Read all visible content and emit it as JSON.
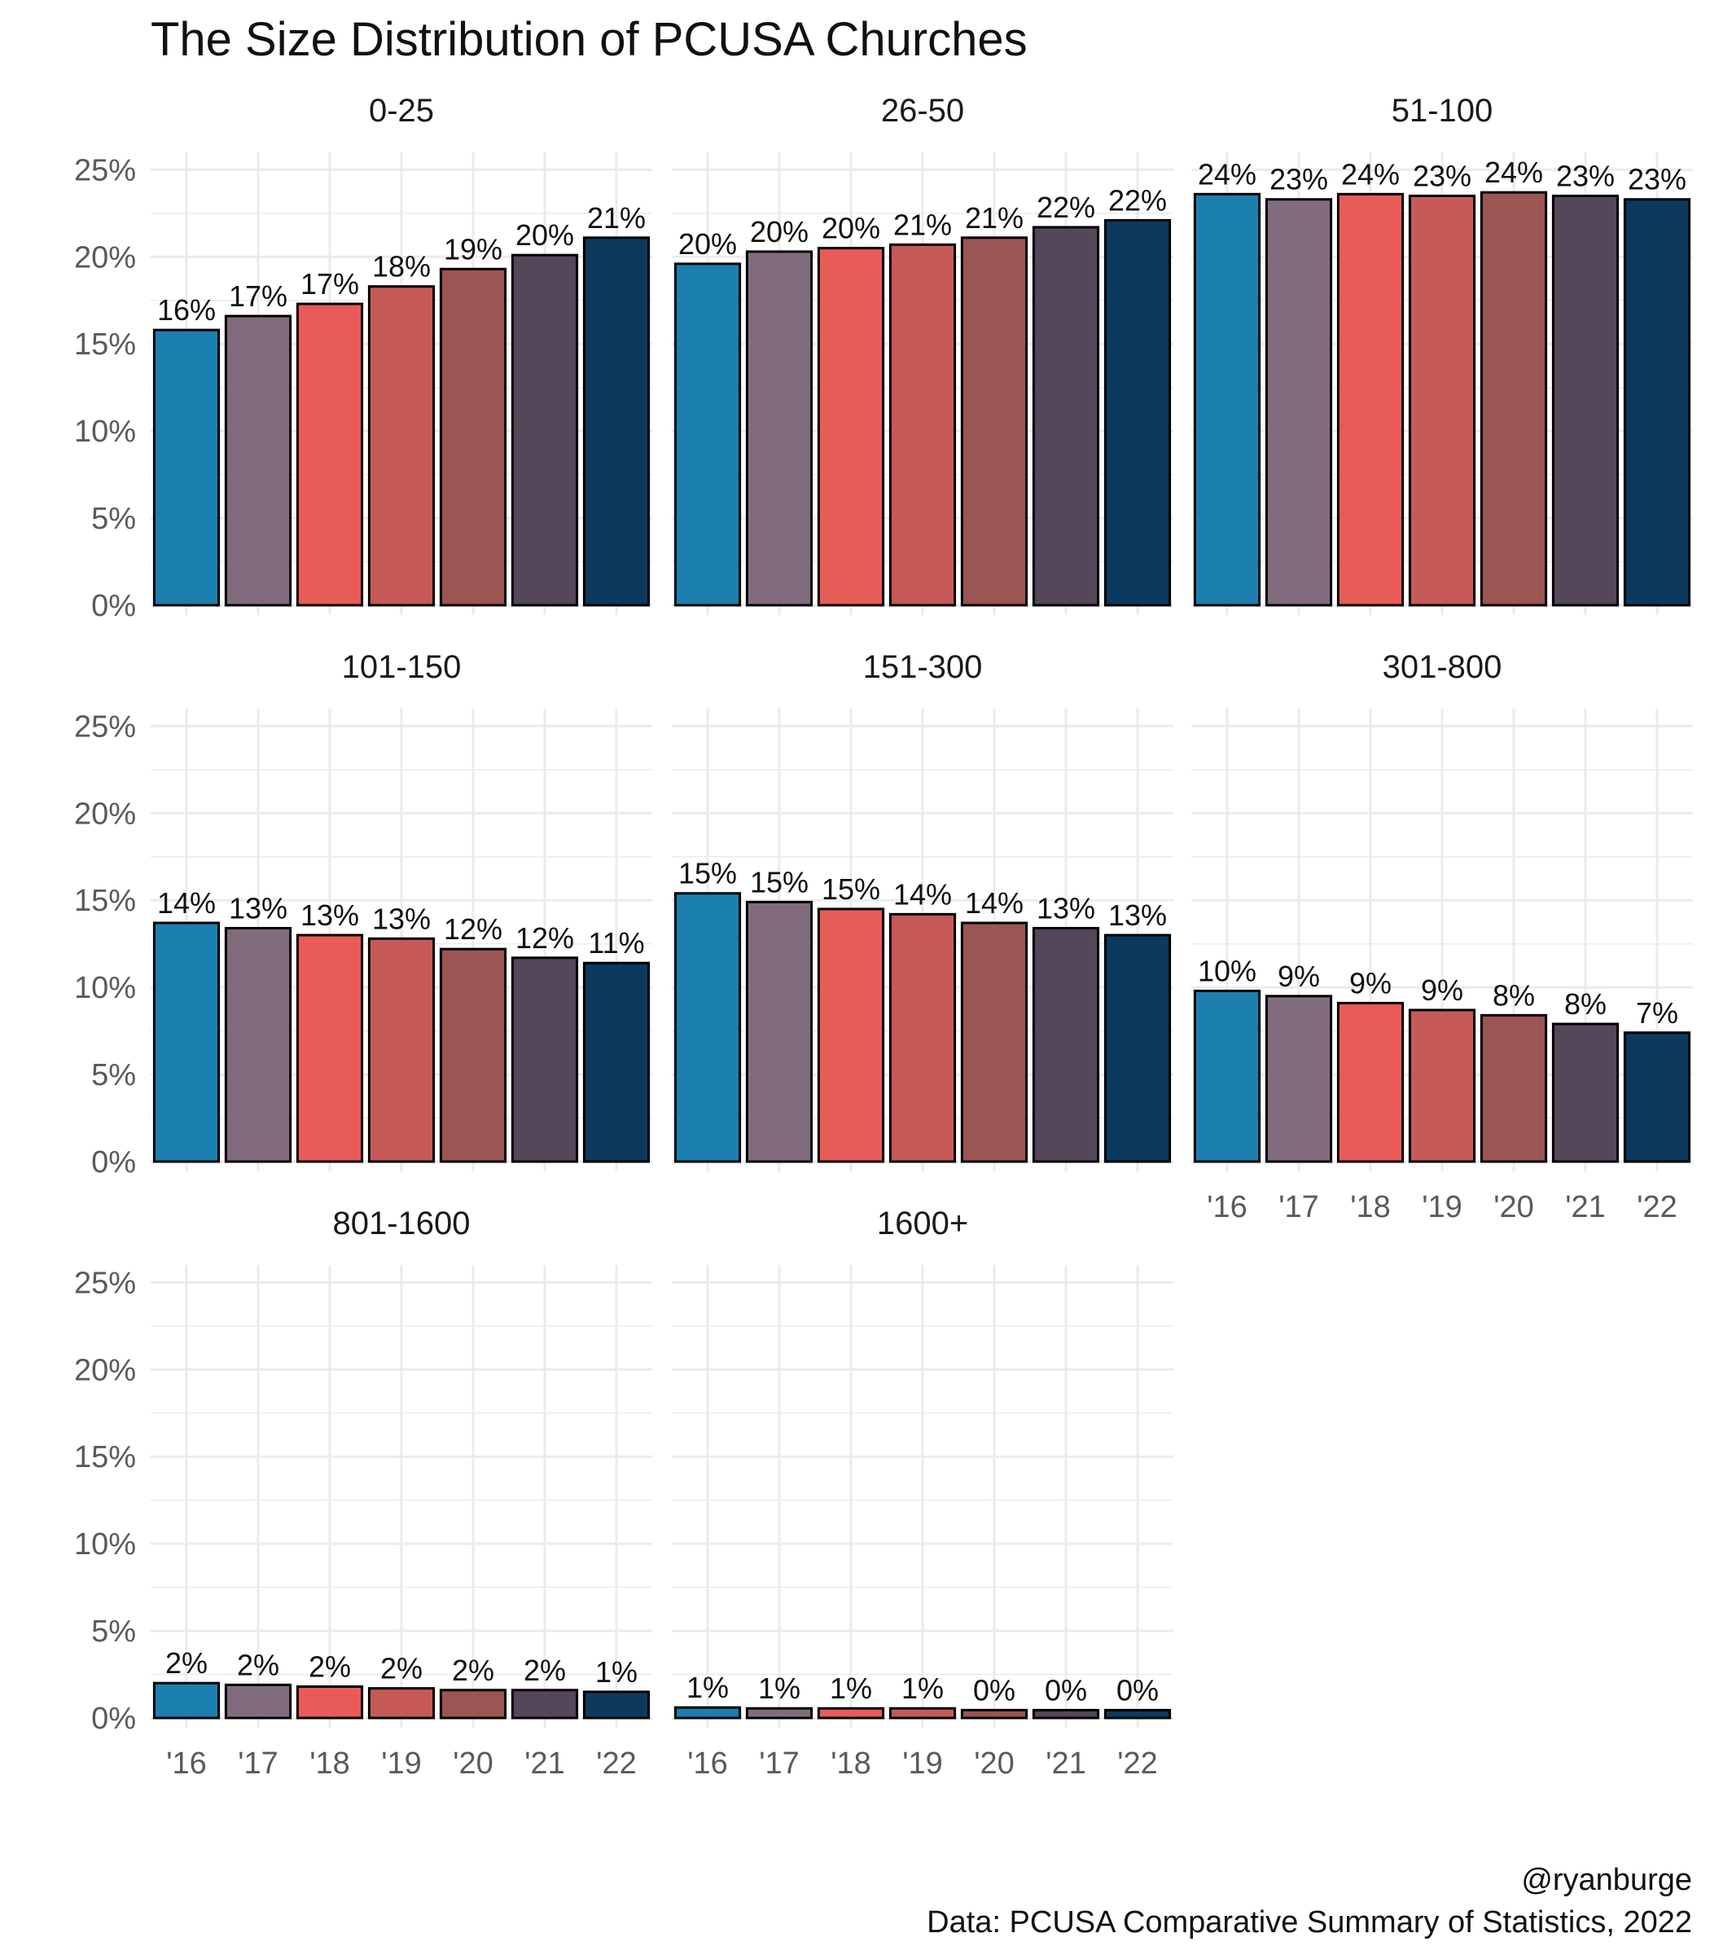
{
  "chart_data": {
    "type": "bar",
    "title": "The Size Distribution of PCUSA Churches",
    "xlabel": "",
    "ylabel": "",
    "categories": [
      "'16",
      "'17",
      "'18",
      "'19",
      "'20",
      "'21",
      "'22"
    ],
    "y_ticks": [
      "0%",
      "5%",
      "10%",
      "15%",
      "20%",
      "25%"
    ],
    "ylim": [
      0,
      26
    ],
    "grid": true,
    "legend": "none",
    "colors": [
      "#1b80b0",
      "#816c7e",
      "#e85b59",
      "#c55a58",
      "#9b5553",
      "#55475a",
      "#0c3a5e"
    ],
    "facets": [
      {
        "name": "0-25",
        "values": [
          15.8,
          16.6,
          17.3,
          18.3,
          19.3,
          20.1,
          21.1
        ],
        "labels": [
          "16%",
          "17%",
          "17%",
          "18%",
          "19%",
          "20%",
          "21%"
        ]
      },
      {
        "name": "26-50",
        "values": [
          19.6,
          20.3,
          20.5,
          20.7,
          21.1,
          21.7,
          22.1
        ],
        "labels": [
          "20%",
          "20%",
          "20%",
          "21%",
          "21%",
          "22%",
          "22%"
        ]
      },
      {
        "name": "51-100",
        "values": [
          23.6,
          23.3,
          23.6,
          23.5,
          23.7,
          23.5,
          23.3
        ],
        "labels": [
          "24%",
          "23%",
          "24%",
          "23%",
          "24%",
          "23%",
          "23%"
        ]
      },
      {
        "name": "101-150",
        "values": [
          13.7,
          13.4,
          13.0,
          12.8,
          12.2,
          11.7,
          11.4
        ],
        "labels": [
          "14%",
          "13%",
          "13%",
          "13%",
          "12%",
          "12%",
          "11%"
        ]
      },
      {
        "name": "151-300",
        "values": [
          15.4,
          14.9,
          14.5,
          14.2,
          13.7,
          13.4,
          13.0
        ],
        "labels": [
          "15%",
          "15%",
          "15%",
          "14%",
          "14%",
          "13%",
          "13%"
        ]
      },
      {
        "name": "301-800",
        "values": [
          9.8,
          9.5,
          9.1,
          8.7,
          8.4,
          7.9,
          7.4
        ],
        "labels": [
          "10%",
          "9%",
          "9%",
          "9%",
          "8%",
          "8%",
          "7%"
        ]
      },
      {
        "name": "801-1600",
        "values": [
          2.0,
          1.9,
          1.8,
          1.7,
          1.6,
          1.6,
          1.5
        ],
        "labels": [
          "2%",
          "2%",
          "2%",
          "2%",
          "2%",
          "2%",
          "1%"
        ]
      },
      {
        "name": "1600+",
        "values": [
          0.6,
          0.55,
          0.55,
          0.55,
          0.45,
          0.45,
          0.45
        ],
        "labels": [
          "1%",
          "1%",
          "1%",
          "1%",
          "0%",
          "0%",
          "0%"
        ]
      }
    ],
    "caption_lines": [
      "@ryanburge",
      "Data: PCUSA Comparative Summary of Statistics, 2022"
    ]
  }
}
